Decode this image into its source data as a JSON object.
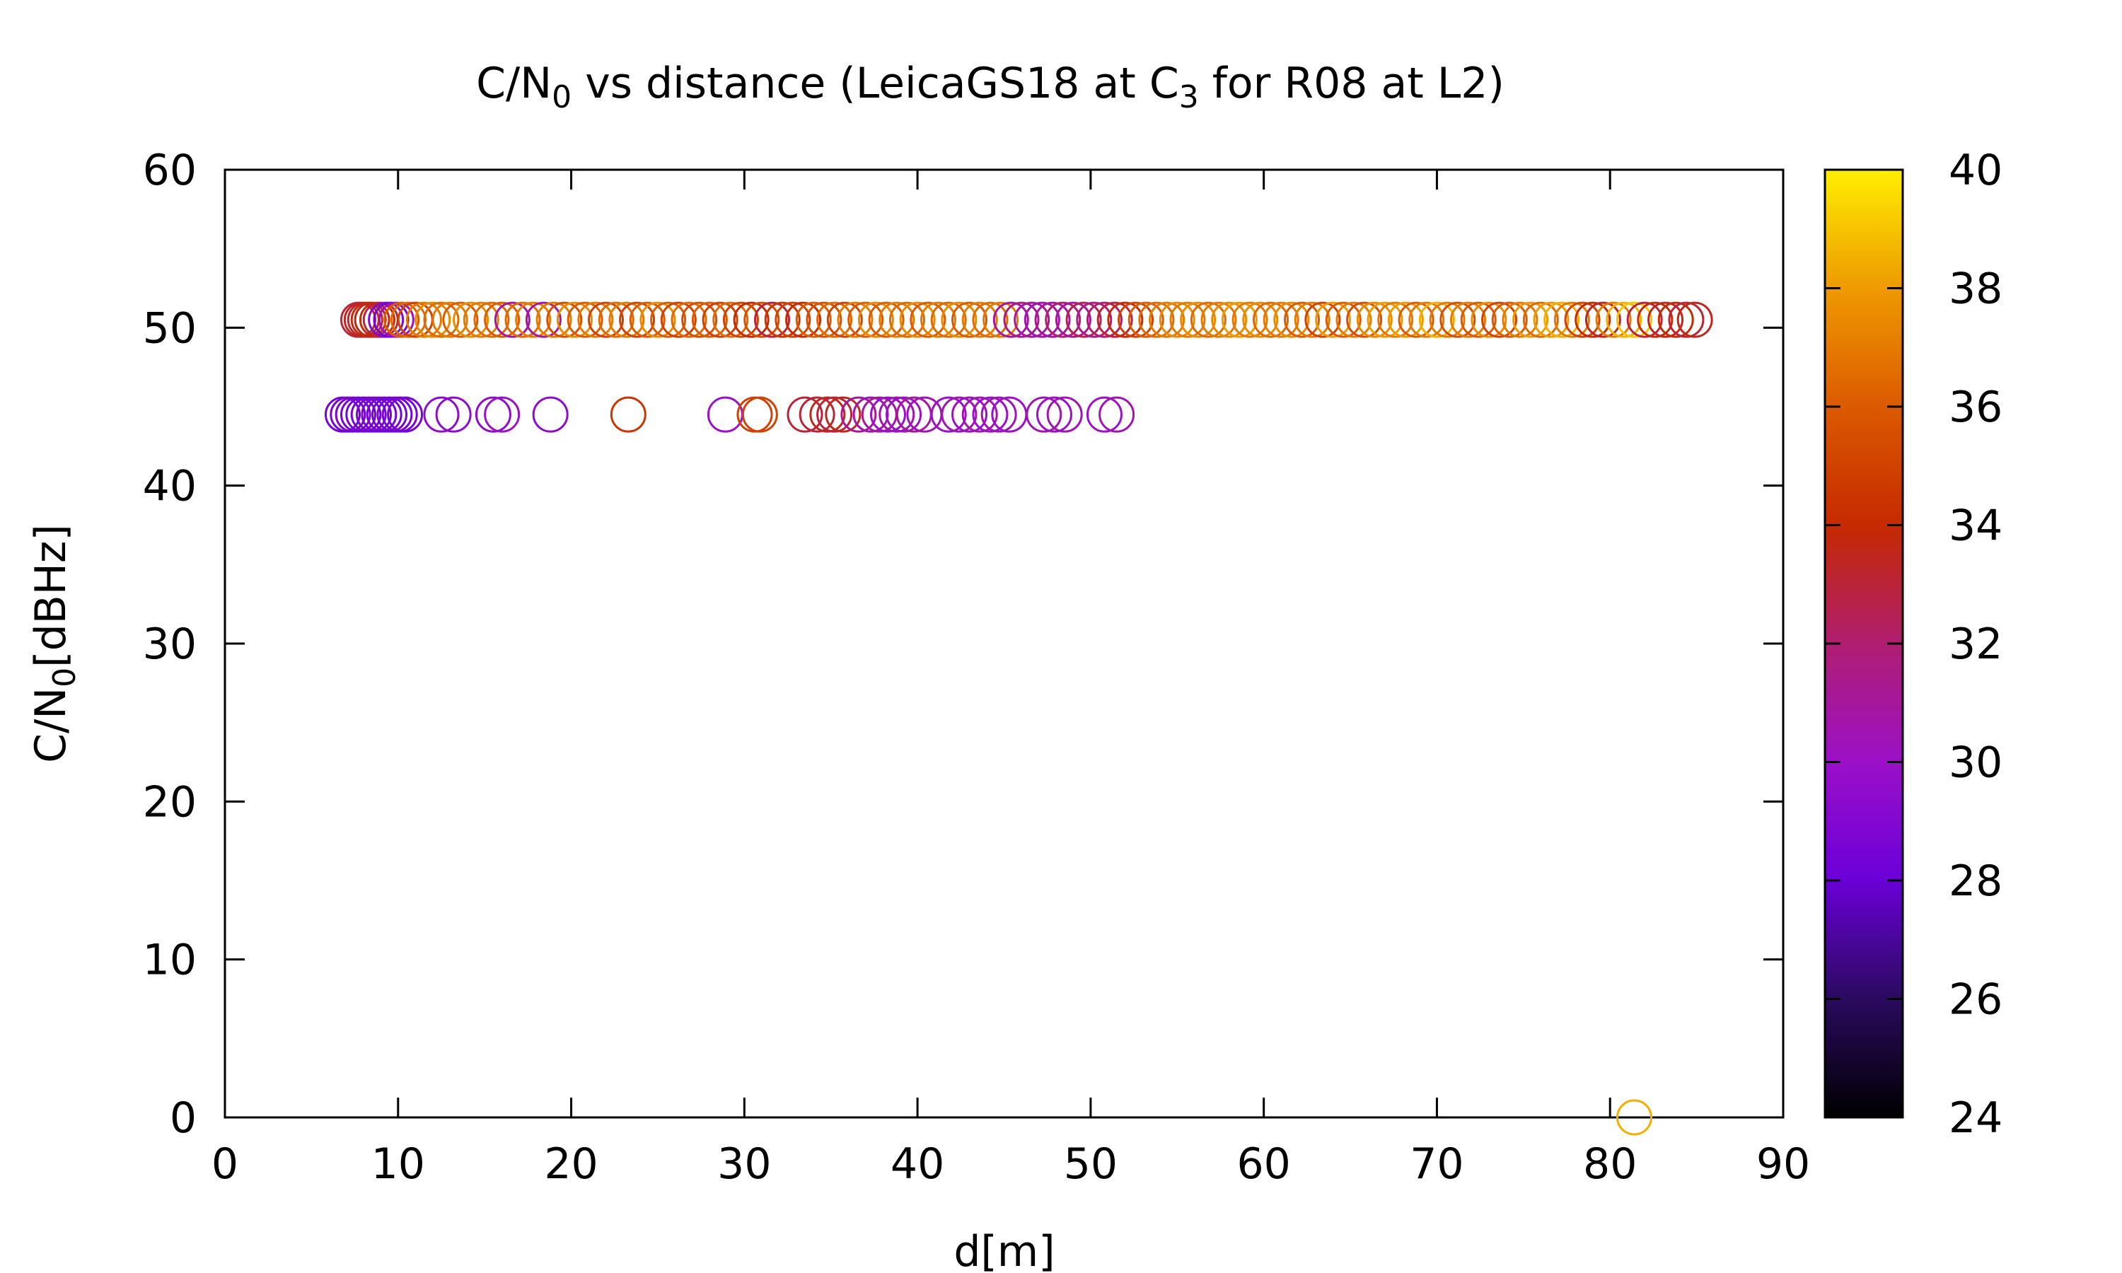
{
  "chart_data": {
    "type": "scatter",
    "title": {
      "prefix": "C/N",
      "sub": "0",
      "middle": " vs distance (LeicaGS18 at C",
      "sub2": "3",
      "suffix": " for R08 at L2)"
    },
    "xlabel": "d[m]",
    "ylabel": {
      "prefix": "C/N",
      "sub": "0",
      "suffix": "[dBHz]"
    },
    "xlim": [
      0,
      90
    ],
    "ylim": [
      0,
      60
    ],
    "xticks": [
      0,
      10,
      20,
      30,
      40,
      50,
      60,
      70,
      80,
      90
    ],
    "yticks": [
      0,
      10,
      20,
      30,
      40,
      50,
      60
    ],
    "colorbar": {
      "range": [
        24,
        40
      ],
      "ticks": [
        24,
        26,
        28,
        30,
        32,
        34,
        36,
        38,
        40
      ],
      "palette": "black-purple-red-orange-yellow"
    },
    "marker": "open-circle",
    "grid": false,
    "series": [
      {
        "y": 50.5,
        "points": [
          [
            7.7,
            33
          ],
          [
            7.9,
            33.5
          ],
          [
            8.1,
            33
          ],
          [
            8.3,
            34
          ],
          [
            8.5,
            33.5
          ],
          [
            8.8,
            34
          ],
          [
            9.0,
            33
          ],
          [
            9.3,
            29
          ],
          [
            9.6,
            28.5
          ],
          [
            9.9,
            30
          ],
          [
            10.2,
            36
          ],
          [
            10.6,
            36.5
          ],
          [
            11.0,
            35
          ],
          [
            11.5,
            37
          ],
          [
            12.0,
            37.5
          ],
          [
            12.5,
            36.5
          ],
          [
            13.0,
            37
          ],
          [
            13.6,
            36
          ],
          [
            14.2,
            37.5
          ],
          [
            14.8,
            37
          ],
          [
            15.4,
            36.5
          ],
          [
            16.0,
            36
          ],
          [
            16.6,
            31
          ],
          [
            17.2,
            36.5
          ],
          [
            17.8,
            37
          ],
          [
            18.4,
            31
          ],
          [
            19.0,
            37
          ],
          [
            19.6,
            35.5
          ],
          [
            20.2,
            37.5
          ],
          [
            20.8,
            36
          ],
          [
            21.4,
            37
          ],
          [
            22.0,
            35
          ],
          [
            22.6,
            36.5
          ],
          [
            23.2,
            37
          ],
          [
            23.8,
            35
          ],
          [
            24.4,
            36
          ],
          [
            25.0,
            37.5
          ],
          [
            25.6,
            36
          ],
          [
            26.2,
            35
          ],
          [
            26.8,
            36.5
          ],
          [
            27.4,
            35.5
          ],
          [
            28.0,
            36
          ],
          [
            28.6,
            35
          ],
          [
            29.2,
            36.5
          ],
          [
            29.8,
            35
          ],
          [
            30.4,
            34
          ],
          [
            31.0,
            35.5
          ],
          [
            31.6,
            33
          ],
          [
            32.2,
            34.5
          ],
          [
            32.8,
            35
          ],
          [
            33.4,
            34
          ],
          [
            34.0,
            36
          ],
          [
            34.6,
            35.5
          ],
          [
            35.2,
            36.5
          ],
          [
            35.8,
            35
          ],
          [
            36.4,
            37
          ],
          [
            37.0,
            36
          ],
          [
            37.6,
            37.5
          ],
          [
            38.2,
            36
          ],
          [
            38.8,
            37
          ],
          [
            39.4,
            36.5
          ],
          [
            40.0,
            37.5
          ],
          [
            40.6,
            36
          ],
          [
            41.2,
            37
          ],
          [
            41.8,
            36.5
          ],
          [
            42.4,
            37.5
          ],
          [
            43.0,
            36
          ],
          [
            43.6,
            37
          ],
          [
            44.2,
            36.5
          ],
          [
            44.8,
            37
          ],
          [
            45.4,
            31
          ],
          [
            46.0,
            31.5
          ],
          [
            46.6,
            31
          ],
          [
            47.2,
            30.5
          ],
          [
            47.8,
            31
          ],
          [
            48.4,
            32
          ],
          [
            49.0,
            31
          ],
          [
            49.6,
            32.5
          ],
          [
            50.2,
            31.5
          ],
          [
            50.8,
            32
          ],
          [
            51.4,
            33
          ],
          [
            52.0,
            34
          ],
          [
            52.6,
            35
          ],
          [
            53.2,
            36
          ],
          [
            53.8,
            36.5
          ],
          [
            54.4,
            37
          ],
          [
            55.0,
            37.5
          ],
          [
            55.6,
            37
          ],
          [
            56.2,
            37.5
          ],
          [
            56.8,
            36.5
          ],
          [
            57.4,
            37
          ],
          [
            58.0,
            37.5
          ],
          [
            58.6,
            38
          ],
          [
            59.2,
            37
          ],
          [
            59.8,
            37.5
          ],
          [
            60.4,
            36.5
          ],
          [
            61.0,
            37
          ],
          [
            61.6,
            37.5
          ],
          [
            62.2,
            36
          ],
          [
            62.8,
            37
          ],
          [
            63.4,
            35
          ],
          [
            64.0,
            38
          ],
          [
            64.6,
            36
          ],
          [
            65.2,
            37
          ],
          [
            65.8,
            35.5
          ],
          [
            66.4,
            37.5
          ],
          [
            67.0,
            38
          ],
          [
            67.6,
            37
          ],
          [
            68.2,
            38
          ],
          [
            68.8,
            36
          ],
          [
            69.4,
            37
          ],
          [
            70.0,
            38.5
          ],
          [
            70.6,
            37
          ],
          [
            71.2,
            35.5
          ],
          [
            71.8,
            37
          ],
          [
            72.4,
            36
          ],
          [
            73.0,
            37.5
          ],
          [
            73.6,
            35
          ],
          [
            74.2,
            36
          ],
          [
            74.8,
            37
          ],
          [
            75.4,
            38
          ],
          [
            76.0,
            36.5
          ],
          [
            76.6,
            38
          ],
          [
            77.2,
            38.5
          ],
          [
            77.8,
            37
          ],
          [
            78.4,
            35
          ],
          [
            79.0,
            34
          ],
          [
            79.6,
            33.5
          ],
          [
            80.2,
            37
          ],
          [
            80.8,
            38.5
          ],
          [
            81.4,
            39
          ],
          [
            82.0,
            33
          ],
          [
            82.6,
            34
          ],
          [
            83.2,
            33.5
          ],
          [
            83.8,
            34
          ],
          [
            84.4,
            33
          ],
          [
            84.9,
            33.5
          ]
        ]
      },
      {
        "y": 44.5,
        "points": [
          [
            6.8,
            28.5
          ],
          [
            7.1,
            28.5
          ],
          [
            7.4,
            28.6
          ],
          [
            7.7,
            28.5
          ],
          [
            8.0,
            28.4
          ],
          [
            8.3,
            28.5
          ],
          [
            8.6,
            28.6
          ],
          [
            8.9,
            28.5
          ],
          [
            9.2,
            28.5
          ],
          [
            9.5,
            28.4
          ],
          [
            9.8,
            28.5
          ],
          [
            10.1,
            28.6
          ],
          [
            10.4,
            28.5
          ],
          [
            12.5,
            29.5
          ],
          [
            13.2,
            29.5
          ],
          [
            15.5,
            29.5
          ],
          [
            16.0,
            30
          ],
          [
            18.8,
            29.5
          ],
          [
            23.3,
            34.5
          ],
          [
            28.9,
            30
          ],
          [
            30.6,
            35
          ],
          [
            30.9,
            35
          ],
          [
            33.5,
            33
          ],
          [
            34.2,
            33
          ],
          [
            34.8,
            33.5
          ],
          [
            35.2,
            33
          ],
          [
            35.7,
            33.5
          ],
          [
            36.6,
            31
          ],
          [
            37.3,
            30.5
          ],
          [
            37.8,
            31
          ],
          [
            38.3,
            30
          ],
          [
            38.8,
            30.5
          ],
          [
            39.2,
            30
          ],
          [
            39.8,
            31
          ],
          [
            40.4,
            30.5
          ],
          [
            41.8,
            30
          ],
          [
            42.4,
            30.5
          ],
          [
            43.0,
            30
          ],
          [
            43.6,
            30.5
          ],
          [
            44.2,
            30
          ],
          [
            44.7,
            30.5
          ],
          [
            45.3,
            30
          ],
          [
            47.3,
            30.5
          ],
          [
            47.9,
            30
          ],
          [
            48.5,
            30.5
          ],
          [
            50.8,
            30
          ],
          [
            51.5,
            30.5
          ]
        ]
      },
      {
        "y": 0,
        "points": [
          [
            81.4,
            38.5
          ]
        ]
      }
    ]
  }
}
